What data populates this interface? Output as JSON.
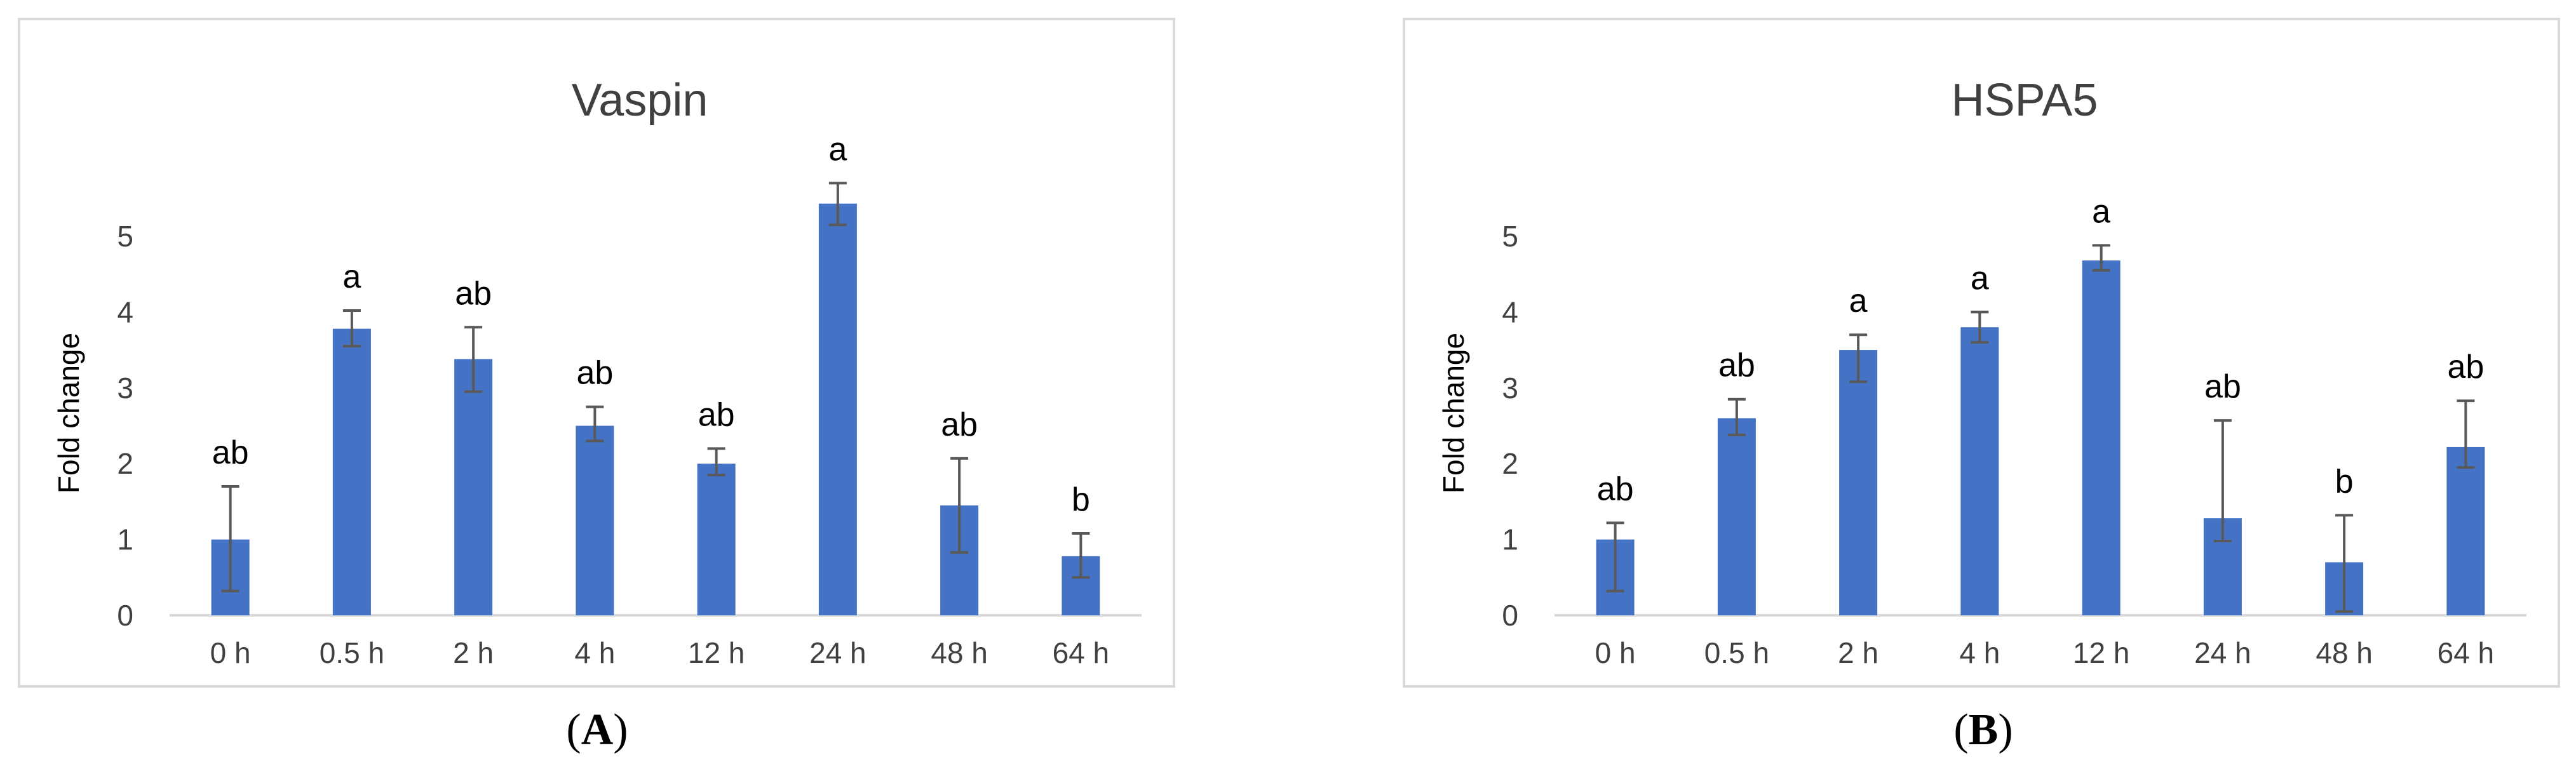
{
  "captions": {
    "left_open": "(",
    "left_letter": "A",
    "left_close": ")",
    "right_open": "(",
    "right_letter": "B",
    "right_close": ")"
  },
  "chart_data": [
    {
      "type": "bar",
      "title": "Vaspin",
      "xlabel": "",
      "ylabel": "Fold change",
      "ylim": [
        0,
        5
      ],
      "yticks": [
        0,
        1,
        2,
        3,
        4,
        5
      ],
      "grid": false,
      "color": "#4472c4",
      "categories": [
        "0 h",
        "0.5 h",
        "2 h",
        "4 h",
        "12 h",
        "24 h",
        "48 h",
        "64 h"
      ],
      "values": [
        1.0,
        3.78,
        3.38,
        2.5,
        2.0,
        5.43,
        1.45,
        0.78
      ],
      "error_low": [
        0.32,
        3.55,
        2.95,
        2.3,
        1.85,
        5.15,
        0.83,
        0.5
      ],
      "error_high": [
        1.7,
        4.02,
        3.8,
        2.75,
        2.2,
        5.7,
        2.07,
        1.08
      ],
      "significance_labels": [
        "ab",
        "a",
        "ab",
        "ab",
        "ab",
        "a",
        "ab",
        "b"
      ]
    },
    {
      "type": "bar",
      "title": "HSPA5",
      "xlabel": "",
      "ylabel": "Fold change",
      "ylim": [
        0,
        5
      ],
      "yticks": [
        0,
        1,
        2,
        3,
        4,
        5
      ],
      "grid": false,
      "color": "#4472c4",
      "categories": [
        "0 h",
        "0.5 h",
        "2 h",
        "4 h",
        "12 h",
        "24 h",
        "48 h",
        "64 h"
      ],
      "values": [
        1.0,
        2.6,
        3.5,
        3.8,
        4.68,
        1.28,
        0.7,
        2.22
      ],
      "error_low": [
        0.32,
        2.38,
        3.08,
        3.6,
        4.55,
        0.98,
        0.05,
        1.95
      ],
      "error_high": [
        1.22,
        2.85,
        3.7,
        4.0,
        4.88,
        2.57,
        1.32,
        2.83
      ],
      "significance_labels": [
        "ab",
        "ab",
        "a",
        "a",
        "a",
        "ab",
        "b",
        "ab"
      ]
    }
  ]
}
